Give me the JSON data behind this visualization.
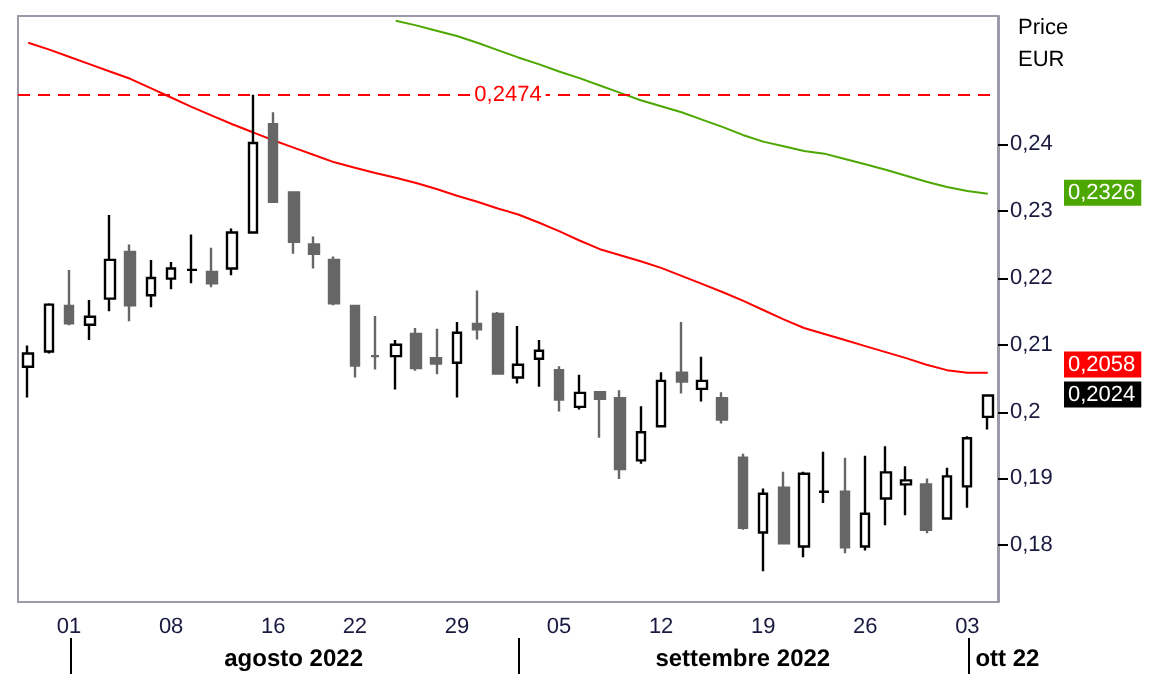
{
  "chart_data": {
    "type": "candlestick",
    "ylabel": "Price\nEUR",
    "categories": [
      null,
      null,
      "01",
      null,
      null,
      null,
      null,
      "08",
      null,
      null,
      null,
      null,
      "16",
      null,
      null,
      null,
      "22",
      null,
      null,
      null,
      null,
      "29",
      null,
      null,
      null,
      null,
      "05",
      null,
      null,
      null,
      null,
      "12",
      null,
      null,
      null,
      null,
      "19",
      null,
      null,
      null,
      null,
      "26",
      null,
      null,
      null,
      null,
      "03",
      null
    ],
    "ylim": [
      0.1715,
      0.2592
    ],
    "yticks": [
      {
        "value": 0.18,
        "label": "0,18"
      },
      {
        "value": 0.19,
        "label": "0,19"
      },
      {
        "value": 0.2,
        "label": "0,2"
      },
      {
        "value": 0.21,
        "label": "0,21"
      },
      {
        "value": 0.22,
        "label": "0,22"
      },
      {
        "value": 0.23,
        "label": "0,23"
      },
      {
        "value": 0.24,
        "label": "0,24"
      }
    ],
    "annotations": [
      "agosto 2022",
      "settembre 2022",
      "ott 22",
      "0,2024",
      "0,2058",
      "0,2326"
    ],
    "ref_lines": [
      {
        "axis": "y",
        "value": 0.2474,
        "label": "0,2474",
        "color": "#ff0000",
        "line_style": "dashed"
      }
    ],
    "series": [
      {
        "type": "candlestick",
        "color": "#666666",
        "colors": [
          "#ffffff",
          "#ffffff",
          "#666666",
          "#ffffff",
          "#ffffff",
          "#666666",
          "#ffffff",
          "#ffffff",
          "#000000",
          "#666666",
          "#ffffff",
          "#ffffff",
          "#666666",
          "#666666",
          "#666666",
          "#666666",
          "#666666",
          "#666666",
          "#ffffff",
          "#666666",
          "#666666",
          "#ffffff",
          "#666666",
          "#666666",
          "#ffffff",
          "#ffffff",
          "#666666",
          "#ffffff",
          "#666666",
          "#666666",
          "#ffffff",
          "#ffffff",
          "#666666",
          "#ffffff",
          "#666666",
          "#666666",
          "#ffffff",
          "#666666",
          "#ffffff",
          "#000000",
          "#666666",
          "#ffffff",
          "#ffffff",
          "#ffffff",
          "#666666",
          "#ffffff",
          "#ffffff",
          "#ffffff"
        ],
        "ohlc": [
          [
            0.2067,
            0.2099,
            0.2021,
            0.2087
          ],
          [
            0.209,
            0.2162,
            0.2087,
            0.216
          ],
          [
            0.2158,
            0.2212,
            0.2129,
            0.2132
          ],
          [
            0.213,
            0.2167,
            0.2107,
            0.2142
          ],
          [
            0.2169,
            0.2294,
            0.215,
            0.2227
          ],
          [
            0.2239,
            0.225,
            0.2135,
            0.2159
          ],
          [
            0.2174,
            0.2227,
            0.2156,
            0.22
          ],
          [
            0.2199,
            0.2224,
            0.2183,
            0.2214
          ],
          [
            0.2212,
            0.2265,
            0.2192,
            0.2212
          ],
          [
            0.2209,
            0.2245,
            0.2186,
            0.2192
          ],
          [
            0.2214,
            0.2274,
            0.2204,
            0.2268
          ],
          [
            0.2268,
            0.2474,
            0.2268,
            0.2402
          ],
          [
            0.243,
            0.2448,
            0.2314,
            0.2314
          ],
          [
            0.2328,
            0.2328,
            0.2236,
            0.2254
          ],
          [
            0.225,
            0.2262,
            0.2214,
            0.2236
          ],
          [
            0.2227,
            0.2232,
            0.2159,
            0.2162
          ],
          [
            0.2158,
            0.2158,
            0.2051,
            0.2069
          ],
          [
            0.2083,
            0.2143,
            0.2063,
            0.2083
          ],
          [
            0.2083,
            0.2107,
            0.2033,
            0.21
          ],
          [
            0.2116,
            0.2125,
            0.2061,
            0.2065
          ],
          [
            0.208,
            0.2124,
            0.2056,
            0.2072
          ],
          [
            0.2073,
            0.2134,
            0.2021,
            0.2118
          ],
          [
            0.2131,
            0.2181,
            0.2108,
            0.2123
          ],
          [
            0.2146,
            0.2149,
            0.2057,
            0.2057
          ],
          [
            0.2051,
            0.2128,
            0.2042,
            0.207
          ],
          [
            0.2079,
            0.2107,
            0.2037,
            0.2091
          ],
          [
            0.2062,
            0.2068,
            0.2,
            0.2018
          ],
          [
            0.2007,
            0.2055,
            0.2003,
            0.2028
          ],
          [
            0.2029,
            0.2029,
            0.1961,
            0.2019
          ],
          [
            0.202,
            0.2032,
            0.1899,
            0.1914
          ],
          [
            0.1927,
            0.2008,
            0.1922,
            0.1969
          ],
          [
            0.1978,
            0.2059,
            0.1978,
            0.2046
          ],
          [
            0.2058,
            0.2134,
            0.2027,
            0.2045
          ],
          [
            0.2034,
            0.2082,
            0.2015,
            0.2046
          ],
          [
            0.202,
            0.2029,
            0.1982,
            0.1988
          ],
          [
            0.1931,
            0.1937,
            0.1823,
            0.1826
          ],
          [
            0.1819,
            0.1885,
            0.1761,
            0.1877
          ],
          [
            0.1886,
            0.191,
            0.1803,
            0.1803
          ],
          [
            0.1798,
            0.191,
            0.1782,
            0.1907
          ],
          [
            0.188,
            0.194,
            0.1863,
            0.188
          ],
          [
            0.188,
            0.1931,
            0.1788,
            0.1797
          ],
          [
            0.1798,
            0.1934,
            0.1792,
            0.1847
          ],
          [
            0.187,
            0.1948,
            0.183,
            0.1909
          ],
          [
            0.1891,
            0.1918,
            0.1845,
            0.1897
          ],
          [
            0.1891,
            0.19,
            0.1818,
            0.1823
          ],
          [
            0.184,
            0.1916,
            0.184,
            0.1903
          ],
          [
            0.1888,
            0.1963,
            0.1856,
            0.196
          ],
          [
            0.1992,
            0.2025,
            0.1973,
            0.2024
          ]
        ]
      },
      {
        "type": "line",
        "color": "#ff0000",
        "values": [
          0.2552,
          0.2542,
          0.2531,
          0.252,
          0.2509,
          0.2498,
          0.2484,
          0.247,
          0.2456,
          0.2443,
          0.243,
          0.2418,
          0.2406,
          0.2395,
          0.2384,
          0.2373,
          0.2365,
          0.2357,
          0.235,
          0.2342,
          0.2333,
          0.2323,
          0.2314,
          0.2304,
          0.2295,
          0.2283,
          0.227,
          0.2256,
          0.2243,
          0.2234,
          0.2225,
          0.2215,
          0.2203,
          0.2191,
          0.2179,
          0.2166,
          0.2152,
          0.2138,
          0.2125,
          0.2116,
          0.2107,
          0.2098,
          0.2089,
          0.208,
          0.207,
          0.2062,
          0.2058,
          0.2058
        ]
      },
      {
        "type": "line",
        "color": "#4ca800",
        "values": [
          null,
          null,
          null,
          null,
          null,
          null,
          null,
          null,
          null,
          null,
          null,
          null,
          null,
          null,
          null,
          null,
          null,
          null,
          0.2585,
          0.2578,
          0.257,
          0.2562,
          0.2552,
          0.2541,
          0.253,
          0.252,
          0.2509,
          0.2499,
          0.2488,
          0.2477,
          0.2466,
          0.2457,
          0.2448,
          0.2437,
          0.2426,
          0.2414,
          0.2404,
          0.2397,
          0.239,
          0.2386,
          0.2378,
          0.237,
          0.2362,
          0.2353,
          0.2344,
          0.2336,
          0.233,
          0.2326
        ]
      }
    ]
  }
}
